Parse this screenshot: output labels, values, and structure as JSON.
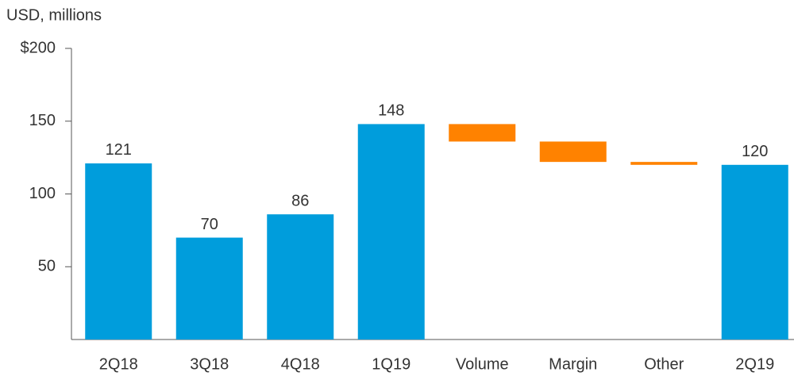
{
  "chart_data": {
    "type": "waterfall",
    "axis_title": "USD, millions",
    "categories": [
      "2Q18",
      "3Q18",
      "4Q18",
      "1Q19",
      "Volume",
      "Margin",
      "Other",
      "2Q19"
    ],
    "values": [
      121,
      70,
      86,
      148,
      -12,
      -14,
      -2,
      120
    ],
    "color": "#009ddc",
    "decrease_color": "#ff8200",
    "ylim": [
      0,
      200
    ],
    "yticks": [
      {
        "value": 200,
        "label": "$200"
      },
      150,
      100,
      50
    ],
    "grid": false
  }
}
